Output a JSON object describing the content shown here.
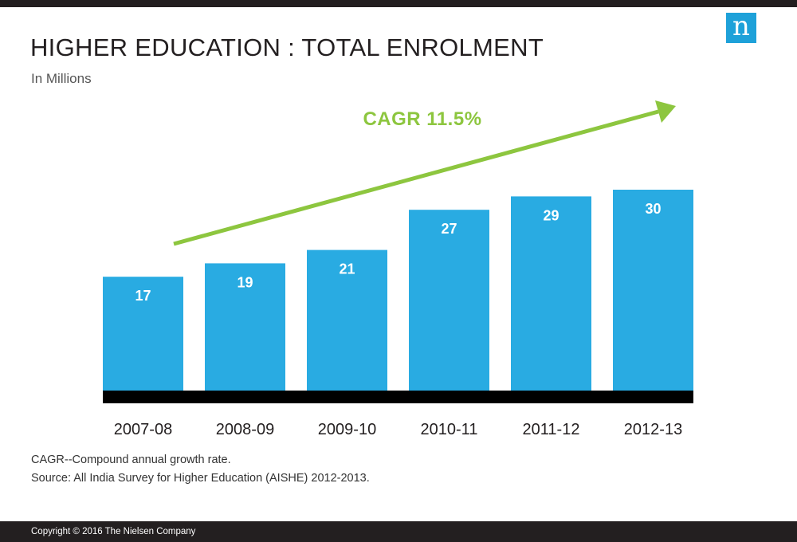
{
  "header": {
    "title": "HIGHER EDUCATION : TOTAL ENROLMENT",
    "subtitle": "In Millions",
    "logo_letter": "n"
  },
  "chart_data": {
    "type": "bar",
    "categories": [
      "2007-08",
      "2008-09",
      "2009-10",
      "2010-11",
      "2011-12",
      "2012-13"
    ],
    "values": [
      17,
      19,
      21,
      27,
      29,
      30
    ],
    "title": "HIGHER EDUCATION : TOTAL ENROLMENT",
    "subtitle": "In Millions",
    "ylabel": "",
    "xlabel": "",
    "grid": false,
    "annotation": "CAGR 11.5%",
    "colors": {
      "bar": "#29abe2",
      "arrow": "#8dc63f",
      "baseline": "#000000",
      "bar_label": "#ffffff"
    }
  },
  "footnotes": [
    "CAGR--Compound annual growth rate.",
    "Source: All India Survey for Higher Education (AISHE) 2012-2013."
  ],
  "footer": {
    "copyright": "Copyright © 2016 The Nielsen Company"
  }
}
